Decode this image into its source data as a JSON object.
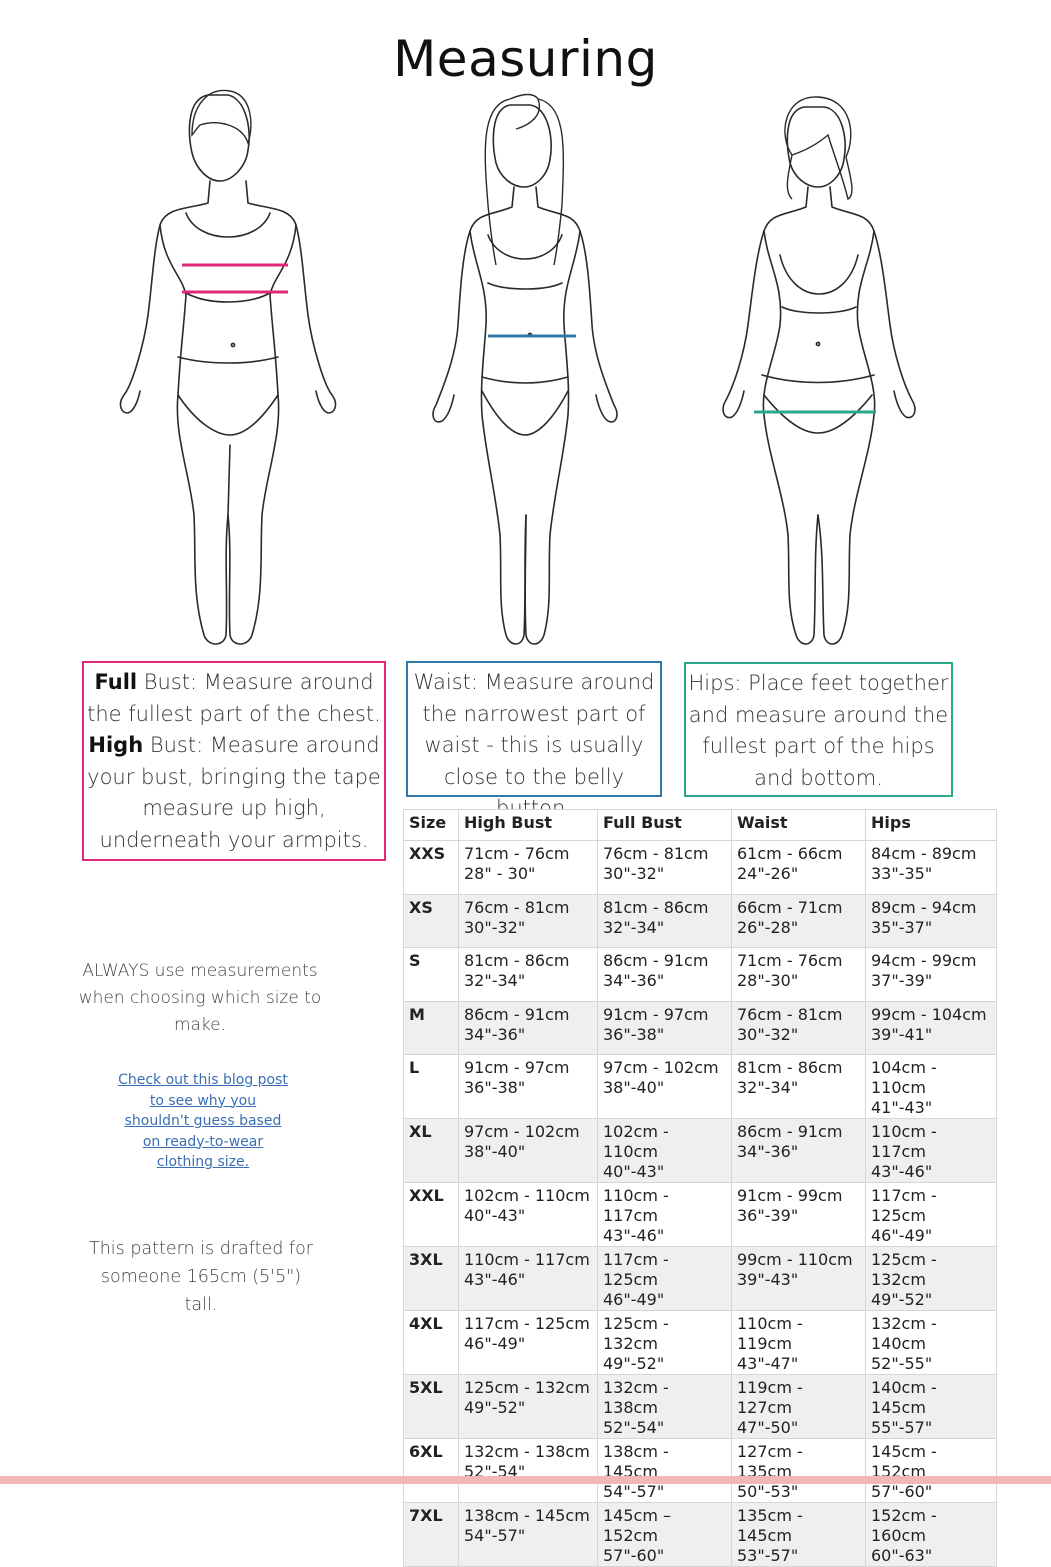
{
  "page": {
    "title": "Measuring"
  },
  "instructions": {
    "full_bust_label": "Full",
    "full_bust_text": " Bust: Measure around the fullest part of the chest.",
    "high_bust_label": "High",
    "high_bust_text": " Bust: Measure around your bust, bringing the tape measure up high, underneath your armpits.",
    "waist_text": "Waist: Measure around the narrowest part of waist - this is usually close to the belly button.",
    "hips_text": "Hips: Place feet together and measure around the fullest part of the hips and bottom."
  },
  "notes": {
    "always_note": "ALWAYS use measurements when choosing which size to make.",
    "blog_link": "Check out this blog post to see why you shouldn't guess based on ready-to-wear clothing size.",
    "height_note": "This pattern is drafted for someone 165cm (5'5\") tall."
  },
  "colors": {
    "bust_line": "#e0287a",
    "waist_line": "#2f78a8",
    "hips_line": "#2aa88a",
    "footer_bar": "#f2b8b8"
  },
  "size_table": {
    "headers": [
      "Size",
      "High Bust",
      "Full Bust",
      "Waist",
      "Hips"
    ],
    "rows": [
      {
        "size": "XXS",
        "high_bust": [
          "71cm - 76cm",
          "28\" - 30\""
        ],
        "full_bust": [
          "76cm - 81cm",
          "30\"-32\""
        ],
        "waist": [
          "61cm - 66cm",
          "24\"-26\""
        ],
        "hips": [
          "84cm - 89cm",
          "33\"-35\""
        ]
      },
      {
        "size": "XS",
        "high_bust": [
          "76cm - 81cm",
          "30\"-32\""
        ],
        "full_bust": [
          "81cm - 86cm",
          "32\"-34\""
        ],
        "waist": [
          "66cm - 71cm",
          "26\"-28\""
        ],
        "hips": [
          "89cm - 94cm",
          "35\"-37\""
        ]
      },
      {
        "size": "S",
        "high_bust": [
          "81cm - 86cm",
          "32\"-34\""
        ],
        "full_bust": [
          "86cm - 91cm",
          "34\"-36\""
        ],
        "waist": [
          "71cm - 76cm",
          "28\"-30\""
        ],
        "hips": [
          "94cm - 99cm",
          "37\"-39\""
        ]
      },
      {
        "size": "M",
        "high_bust": [
          "86cm - 91cm",
          "34\"-36\""
        ],
        "full_bust": [
          "91cm - 97cm",
          "36\"-38\""
        ],
        "waist": [
          "76cm - 81cm",
          "30\"-32\""
        ],
        "hips": [
          "99cm - 104cm",
          "39\"-41\""
        ]
      },
      {
        "size": "L",
        "high_bust": [
          "91cm - 97cm",
          "36\"-38\""
        ],
        "full_bust": [
          "97cm - 102cm",
          "38\"-40\""
        ],
        "waist": [
          "81cm - 86cm",
          "32\"-34\""
        ],
        "hips": [
          "104cm - 110cm",
          "41\"-43\""
        ]
      },
      {
        "size": "XL",
        "high_bust": [
          "97cm - 102cm",
          "38\"-40\""
        ],
        "full_bust": [
          "102cm - 110cm",
          "40\"-43\""
        ],
        "waist": [
          "86cm - 91cm",
          "34\"-36\""
        ],
        "hips": [
          "110cm - 117cm",
          "43\"-46\""
        ]
      },
      {
        "size": "XXL",
        "high_bust": [
          "102cm - 110cm",
          "40\"-43\""
        ],
        "full_bust": [
          "110cm - 117cm",
          "43\"-46\""
        ],
        "waist": [
          "91cm - 99cm",
          "36\"-39\""
        ],
        "hips": [
          "117cm - 125cm",
          "46\"-49\""
        ]
      },
      {
        "size": "3XL",
        "high_bust": [
          "110cm - 117cm",
          "43\"-46\""
        ],
        "full_bust": [
          "117cm - 125cm",
          "46\"-49\""
        ],
        "waist": [
          "99cm - 110cm",
          "39\"-43\""
        ],
        "hips": [
          "125cm - 132cm",
          "49\"-52\""
        ]
      },
      {
        "size": "4XL",
        "high_bust": [
          "117cm - 125cm",
          "46\"-49\""
        ],
        "full_bust": [
          "125cm - 132cm",
          "49\"-52\""
        ],
        "waist": [
          "110cm - 119cm",
          "43\"-47\""
        ],
        "hips": [
          "132cm - 140cm",
          "52\"-55\""
        ]
      },
      {
        "size": "5XL",
        "high_bust": [
          "125cm - 132cm",
          "49\"-52\""
        ],
        "full_bust": [
          "132cm - 138cm",
          "52\"-54\""
        ],
        "waist": [
          "119cm - 127cm",
          "47\"-50\""
        ],
        "hips": [
          "140cm - 145cm",
          "55\"-57\""
        ]
      },
      {
        "size": "6XL",
        "high_bust": [
          "132cm - 138cm",
          "52\"-54\""
        ],
        "full_bust": [
          "138cm - 145cm",
          "54\"-57\""
        ],
        "waist": [
          "127cm - 135cm",
          "50\"-53\""
        ],
        "hips": [
          "145cm - 152cm",
          "57\"-60\""
        ]
      },
      {
        "size": "7XL",
        "high_bust": [
          "138cm - 145cm",
          "54\"-57\""
        ],
        "full_bust": [
          "145cm – 152cm",
          "57\"-60\""
        ],
        "waist": [
          "135cm - 145cm",
          "53\"-57\""
        ],
        "hips": [
          "152cm - 160cm",
          "60\"-63\""
        ]
      }
    ]
  }
}
